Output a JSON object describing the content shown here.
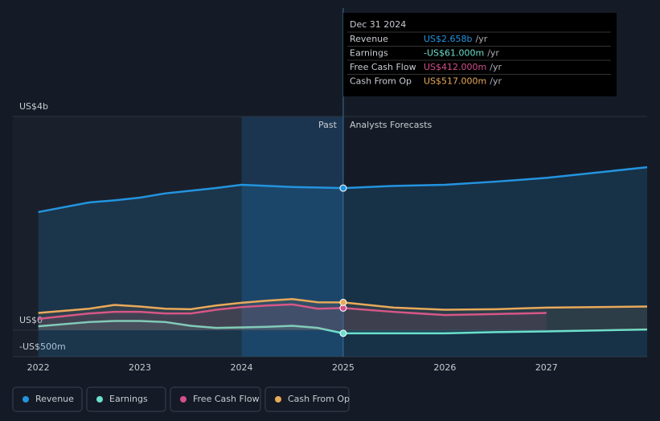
{
  "chart_data": {
    "type": "line",
    "x": [
      2022,
      2022.5,
      2022.75,
      2023,
      2023.25,
      2023.5,
      2023.75,
      2024,
      2024.25,
      2024.5,
      2024.75,
      2025,
      2025.5,
      2026,
      2026.5,
      2027,
      2027.99
    ],
    "xlim": [
      2021.75,
      2027.99
    ],
    "xticks": [
      2022,
      2023,
      2024,
      2025,
      2026,
      2027
    ],
    "ylim": [
      -500,
      4000
    ],
    "yticks": [
      {
        "value": 4000,
        "label": "US$4b"
      },
      {
        "value": 0,
        "label": "US$0"
      },
      {
        "value": -500,
        "label": "-US$500m"
      }
    ],
    "divider": 2025,
    "past_label": "Past",
    "forecast_label": "Analysts Forecasts",
    "series": [
      {
        "name": "Revenue",
        "color": "#2394df",
        "area": true,
        "values": [
          2210,
          2390,
          2430,
          2480,
          2560,
          2610,
          2660,
          2720,
          2700,
          2680,
          2670,
          2658,
          2700,
          2720,
          2780,
          2850,
          3050
        ]
      },
      {
        "name": "Earnings",
        "color": "#6cdfcc",
        "values": [
          70,
          150,
          170,
          170,
          150,
          80,
          40,
          50,
          60,
          80,
          40,
          -61,
          -61,
          -61,
          -40,
          -25,
          10
        ]
      },
      {
        "name": "Free Cash Flow",
        "color": "#d44f8c",
        "values": [
          210,
          310,
          340,
          340,
          310,
          310,
          380,
          430,
          460,
          480,
          400,
          412,
          340,
          280,
          300,
          320,
          null
        ]
      },
      {
        "name": "Cash From Op",
        "color": "#e8a95a",
        "values": [
          320,
          400,
          470,
          440,
          400,
          390,
          460,
          510,
          550,
          580,
          520,
          517,
          420,
          380,
          390,
          420,
          440
        ]
      }
    ],
    "tooltip": {
      "date": "Dec 31 2024",
      "rows": [
        {
          "label": "Revenue",
          "value": "US$2.658b",
          "unit": "/yr"
        },
        {
          "label": "Earnings",
          "value": "-US$61.000m",
          "unit": "/yr"
        },
        {
          "label": "Free Cash Flow",
          "value": "US$412.000m",
          "unit": "/yr"
        },
        {
          "label": "Cash From Op",
          "value": "US$517.000m",
          "unit": "/yr"
        }
      ]
    }
  }
}
